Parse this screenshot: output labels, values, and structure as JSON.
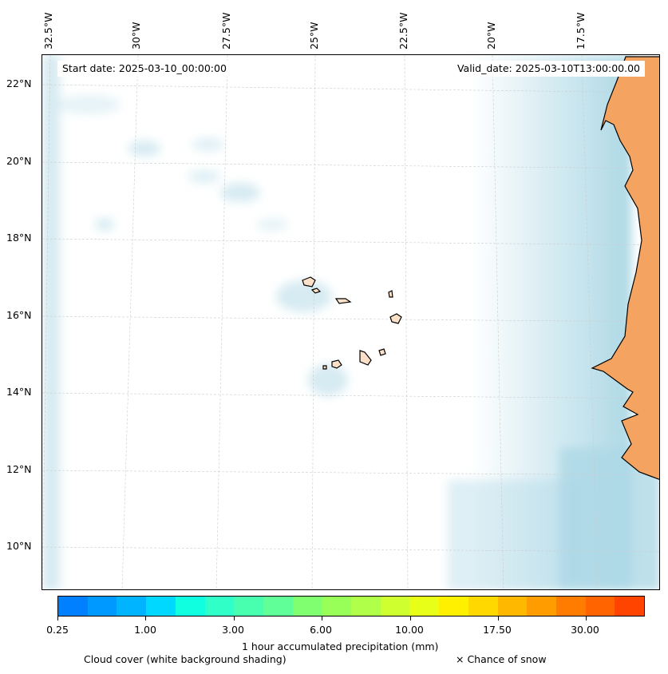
{
  "header": {
    "start_date": "Start date: 2025-03-10_00:00:00",
    "valid_date": "Valid_date: 2025-03-10T13:00:00.00"
  },
  "lon_labels": [
    "32.5°W",
    "30°W",
    "27.5°W",
    "25°W",
    "22.5°W",
    "20°W",
    "17.5°W"
  ],
  "lat_labels": [
    "22°N",
    "20°N",
    "18°N",
    "16°N",
    "14°N",
    "12°N",
    "10°N"
  ],
  "colorbar": {
    "colors": [
      "#0080ff",
      "#0099ff",
      "#00b4ff",
      "#00d8ff",
      "#10ffe0",
      "#30ffc8",
      "#48ffb0",
      "#60ff98",
      "#80ff70",
      "#98ff58",
      "#b0ff48",
      "#d0ff30",
      "#e8ff18",
      "#fff000",
      "#ffd800",
      "#ffb800",
      "#ff9c00",
      "#ff7c00",
      "#ff6400",
      "#ff4400"
    ],
    "tick_labels": [
      "0.25",
      "1.00",
      "3.00",
      "6.00",
      "10.00",
      "17.50",
      "30.00"
    ],
    "label": "1 hour accumulated precipitation (mm)"
  },
  "legend": {
    "cloud_cover": "Cloud cover (white background shading)",
    "snow": "× Chance of snow"
  },
  "colors": {
    "land": "#f4a460",
    "cloud": "#add8e6"
  }
}
